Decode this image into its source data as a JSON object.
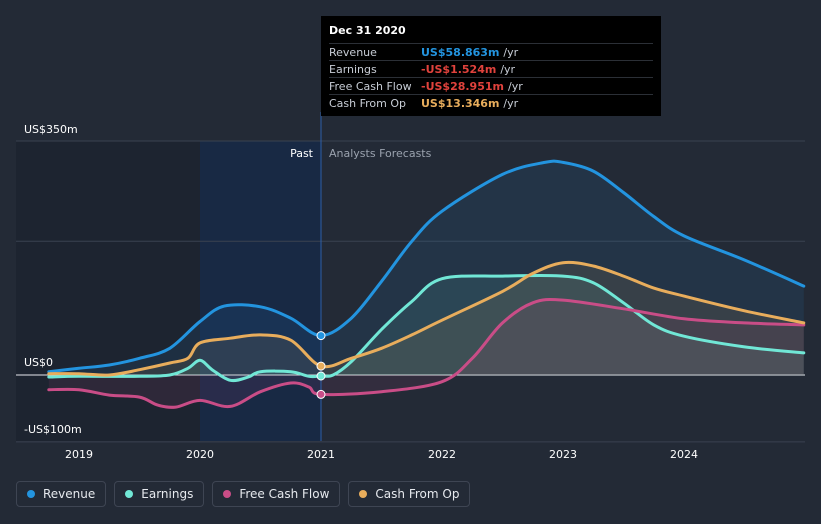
{
  "chart_data": {
    "type": "line",
    "y_axis": {
      "top_label": "US$350m",
      "zero_label": "US$0",
      "bottom_label": "-US$100m",
      "ylim": [
        -100,
        350
      ]
    },
    "x_ticks": [
      "2019",
      "2020",
      "2021",
      "2022",
      "2023",
      "2024"
    ],
    "xlim": [
      2018.75,
      2024.99
    ],
    "divider_x": 2021.0,
    "past_label": "Past",
    "forecast_label": "Analysts Forecasts",
    "highlight_range": [
      2020.0,
      2021.0
    ],
    "series": [
      {
        "name": "Revenue",
        "color": "#2394df",
        "points": [
          [
            2018.75,
            5
          ],
          [
            2019.0,
            10
          ],
          [
            2019.25,
            15
          ],
          [
            2019.5,
            25
          ],
          [
            2019.75,
            40
          ],
          [
            2020.0,
            80
          ],
          [
            2020.2,
            103
          ],
          [
            2020.5,
            102
          ],
          [
            2020.75,
            85
          ],
          [
            2021.0,
            58.9
          ],
          [
            2021.25,
            85
          ],
          [
            2021.5,
            140
          ],
          [
            2021.75,
            200
          ],
          [
            2022.0,
            245
          ],
          [
            2022.5,
            300
          ],
          [
            2022.85,
            318
          ],
          [
            2023.0,
            318
          ],
          [
            2023.25,
            305
          ],
          [
            2023.5,
            273
          ],
          [
            2023.75,
            237
          ],
          [
            2024.0,
            208
          ],
          [
            2024.5,
            172
          ],
          [
            2024.99,
            133
          ]
        ]
      },
      {
        "name": "Earnings",
        "color": "#71e7d6",
        "points": [
          [
            2018.75,
            -3
          ],
          [
            2019.0,
            -2
          ],
          [
            2019.5,
            -2
          ],
          [
            2019.75,
            0
          ],
          [
            2019.9,
            10
          ],
          [
            2020.0,
            22
          ],
          [
            2020.1,
            8
          ],
          [
            2020.25,
            -8
          ],
          [
            2020.4,
            -3
          ],
          [
            2020.5,
            5
          ],
          [
            2020.75,
            5
          ],
          [
            2020.9,
            -2
          ],
          [
            2021.0,
            -1.5
          ],
          [
            2021.1,
            0
          ],
          [
            2021.25,
            20
          ],
          [
            2021.5,
            68
          ],
          [
            2021.75,
            110
          ],
          [
            2022.0,
            144
          ],
          [
            2022.5,
            148
          ],
          [
            2023.0,
            148
          ],
          [
            2023.25,
            138
          ],
          [
            2023.5,
            108
          ],
          [
            2023.75,
            75
          ],
          [
            2024.0,
            58
          ],
          [
            2024.5,
            42
          ],
          [
            2024.99,
            33
          ]
        ]
      },
      {
        "name": "Free Cash Flow",
        "color": "#c94d87",
        "points": [
          [
            2018.75,
            -22
          ],
          [
            2019.0,
            -22
          ],
          [
            2019.25,
            -30
          ],
          [
            2019.5,
            -33
          ],
          [
            2019.65,
            -45
          ],
          [
            2019.8,
            -48
          ],
          [
            2020.0,
            -38
          ],
          [
            2020.25,
            -47
          ],
          [
            2020.5,
            -25
          ],
          [
            2020.75,
            -12
          ],
          [
            2020.9,
            -18
          ],
          [
            2021.0,
            -29
          ],
          [
            2021.5,
            -25
          ],
          [
            2022.0,
            -10
          ],
          [
            2022.25,
            25
          ],
          [
            2022.5,
            78
          ],
          [
            2022.75,
            108
          ],
          [
            2023.0,
            112
          ],
          [
            2023.5,
            99
          ],
          [
            2024.0,
            84
          ],
          [
            2024.5,
            78
          ],
          [
            2024.99,
            75
          ]
        ]
      },
      {
        "name": "Cash From Op",
        "color": "#e8ad5c",
        "points": [
          [
            2018.75,
            2
          ],
          [
            2019.0,
            2
          ],
          [
            2019.25,
            0
          ],
          [
            2019.5,
            8
          ],
          [
            2019.75,
            18
          ],
          [
            2019.9,
            25
          ],
          [
            2020.0,
            48
          ],
          [
            2020.25,
            55
          ],
          [
            2020.5,
            60
          ],
          [
            2020.75,
            52
          ],
          [
            2021.0,
            13.3
          ],
          [
            2021.25,
            25
          ],
          [
            2021.5,
            40
          ],
          [
            2021.75,
            60
          ],
          [
            2022.0,
            82
          ],
          [
            2022.5,
            125
          ],
          [
            2022.75,
            152
          ],
          [
            2023.0,
            168
          ],
          [
            2023.25,
            163
          ],
          [
            2023.5,
            148
          ],
          [
            2023.75,
            130
          ],
          [
            2024.0,
            118
          ],
          [
            2024.5,
            96
          ],
          [
            2024.99,
            78
          ]
        ]
      }
    ],
    "markers_x": 2021.0
  },
  "tooltip": {
    "date": "Dec 31 2020",
    "rows": [
      {
        "name": "Revenue",
        "value": "US$58.863m",
        "unit": "/yr",
        "color": "#2394df"
      },
      {
        "name": "Earnings",
        "value": "-US$1.524m",
        "unit": "/yr",
        "color": "#e0423c"
      },
      {
        "name": "Free Cash Flow",
        "value": "-US$28.951m",
        "unit": "/yr",
        "color": "#e0423c"
      },
      {
        "name": "Cash From Op",
        "value": "US$13.346m",
        "unit": "/yr",
        "color": "#e8ad5c"
      }
    ]
  },
  "legend": [
    {
      "label": "Revenue",
      "color": "#2394df"
    },
    {
      "label": "Earnings",
      "color": "#71e7d6"
    },
    {
      "label": "Free Cash Flow",
      "color": "#c94d87"
    },
    {
      "label": "Cash From Op",
      "color": "#e8ad5c"
    }
  ]
}
